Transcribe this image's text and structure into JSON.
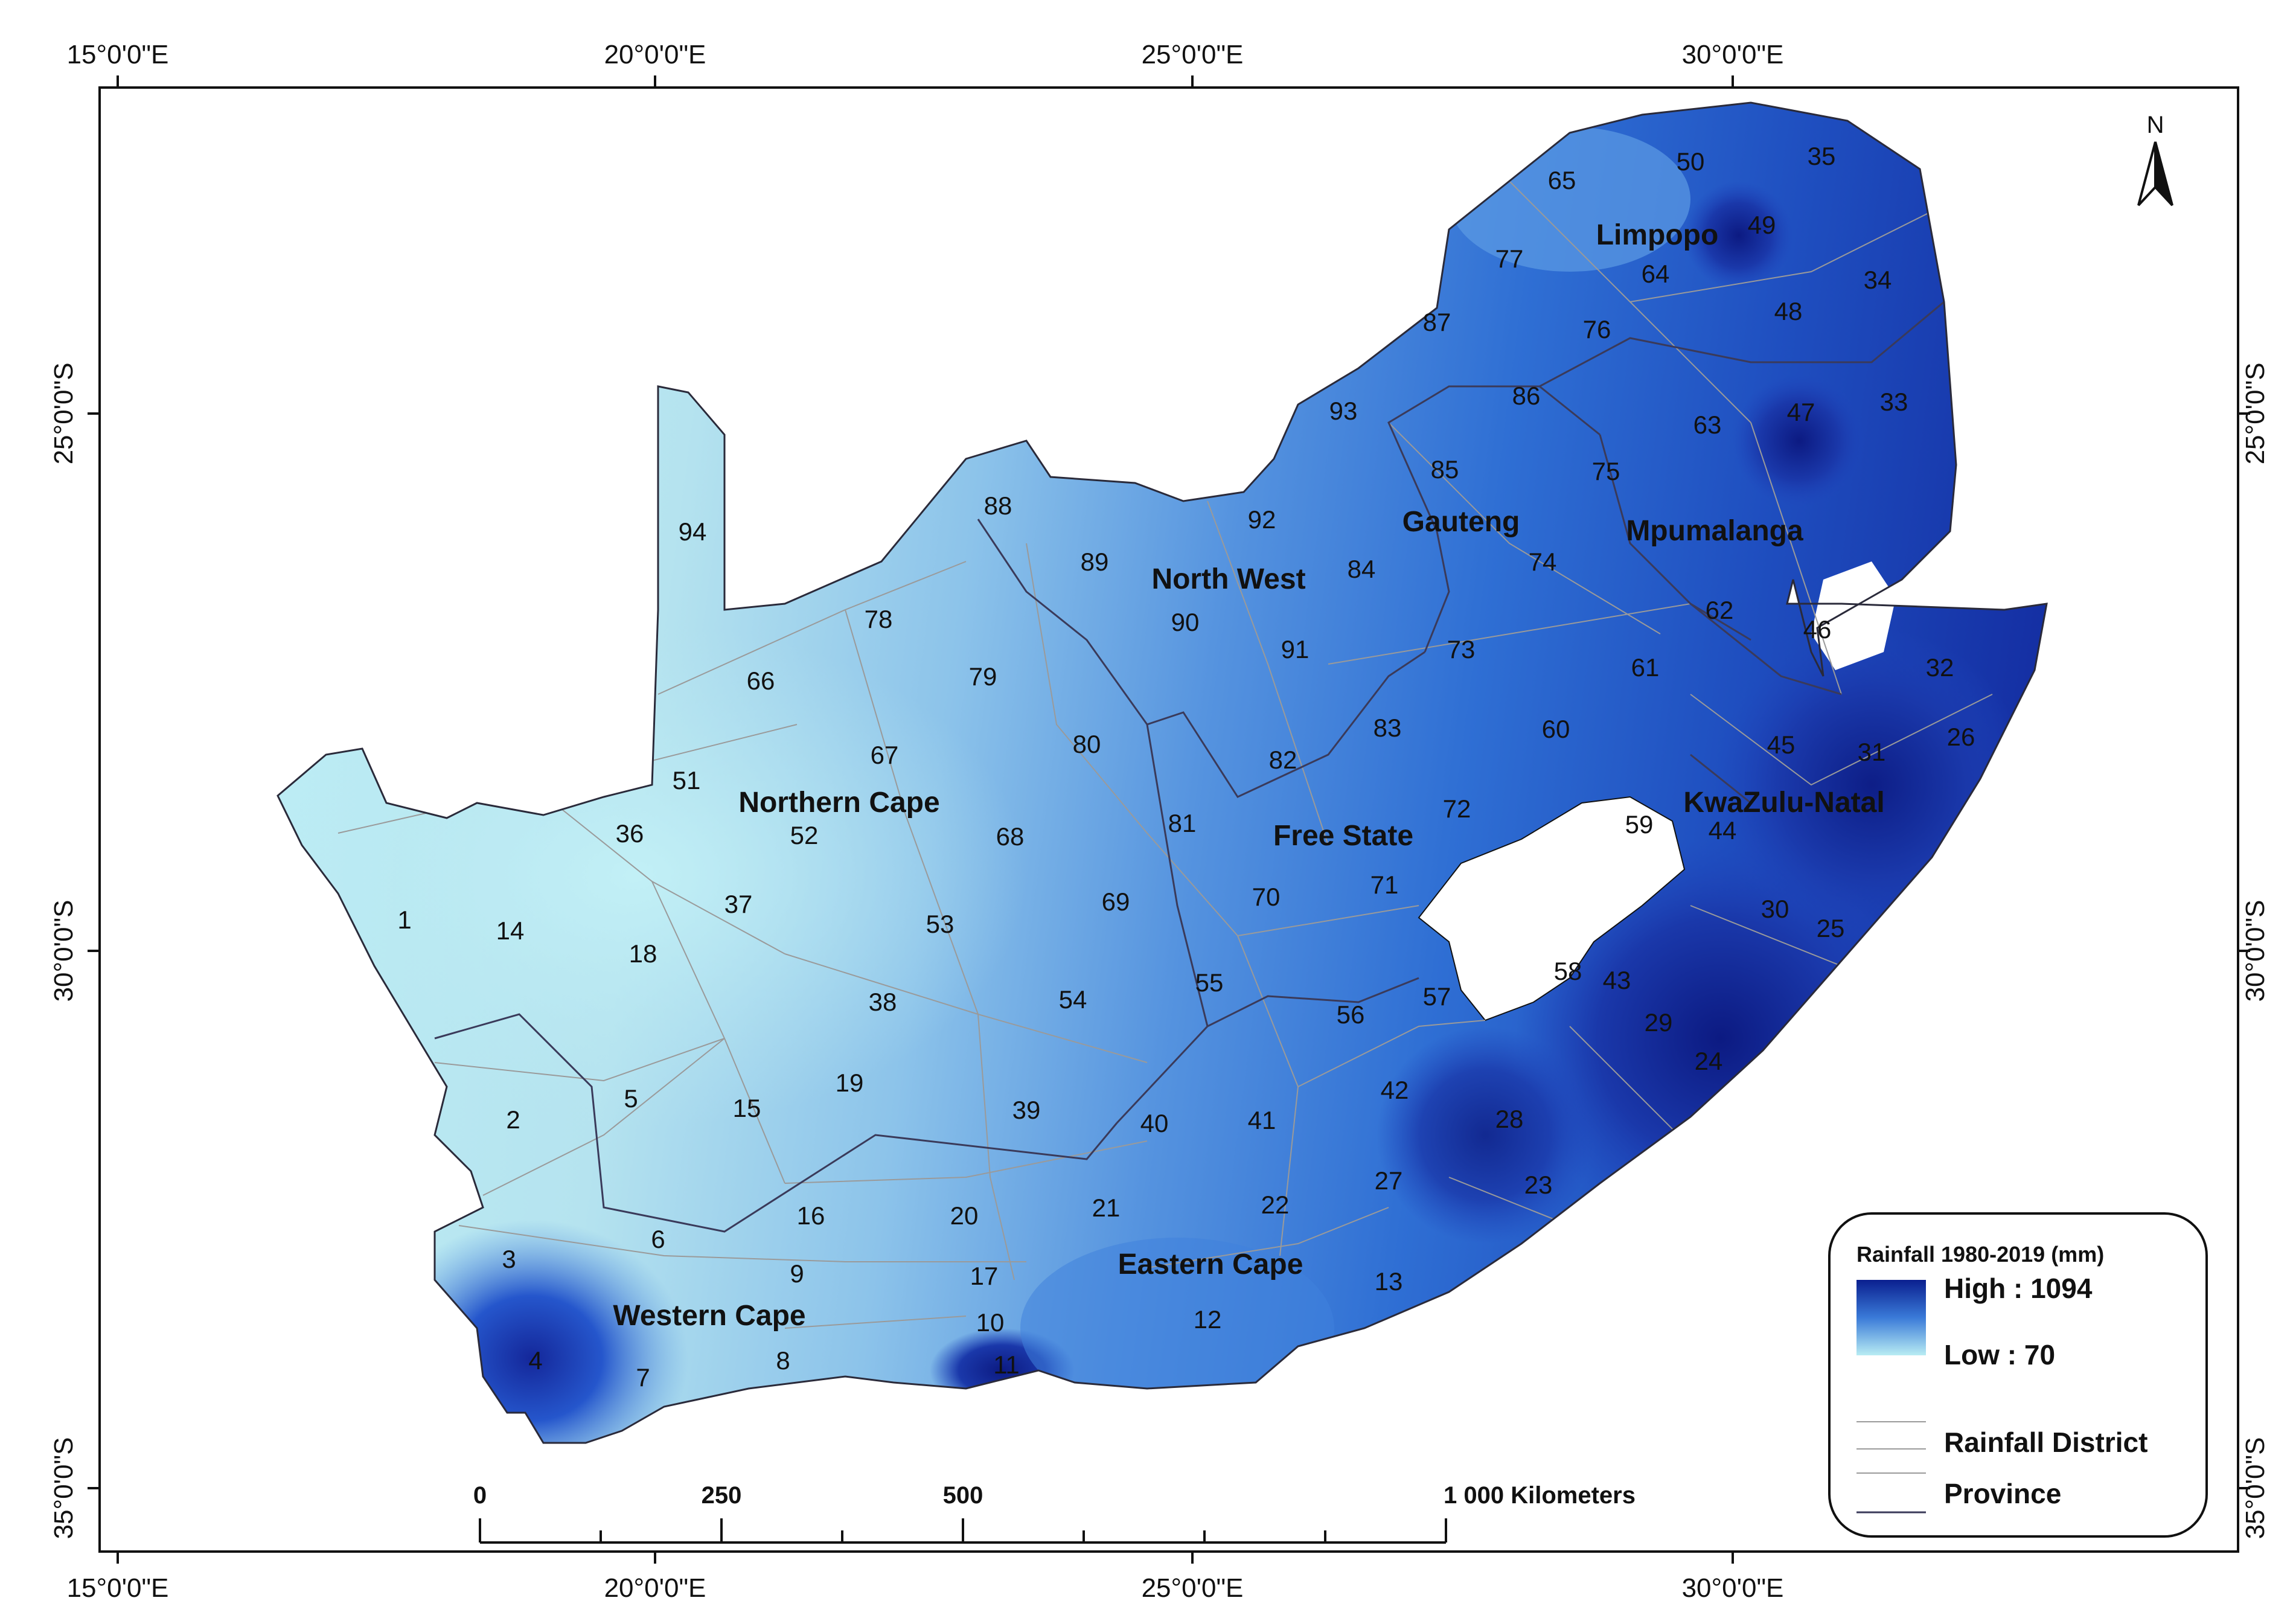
{
  "graticule": {
    "top_labels": [
      "15°0'0\"E",
      "20°0'0\"E",
      "25°0'0\"E",
      "30°0'0\"E"
    ],
    "bottom_labels": [
      "15°0'0\"E",
      "20°0'0\"E",
      "25°0'0\"E",
      "30°0'0\"E"
    ],
    "left_labels": [
      "25°0'0\"S",
      "30°0'0\"S",
      "35°0'0\"S"
    ],
    "right_labels": [
      "25°0'0\"S",
      "30°0'0\"S",
      "35°0'0\"S"
    ]
  },
  "north_arrow": {
    "label": "N"
  },
  "provinces": [
    "Limpopo",
    "Gauteng",
    "Mpumalanga",
    "North West",
    "Northern Cape",
    "Free State",
    "KwaZulu-Natal",
    "Eastern Cape",
    "Western Cape"
  ],
  "districts": [
    "1",
    "2",
    "3",
    "4",
    "5",
    "6",
    "7",
    "8",
    "9",
    "10",
    "11",
    "12",
    "13",
    "14",
    "15",
    "16",
    "17",
    "18",
    "19",
    "20",
    "21",
    "22",
    "23",
    "24",
    "25",
    "26",
    "27",
    "28",
    "29",
    "30",
    "31",
    "32",
    "33",
    "34",
    "35",
    "36",
    "37",
    "38",
    "39",
    "40",
    "41",
    "42",
    "43",
    "44",
    "45",
    "46",
    "47",
    "48",
    "49",
    "50",
    "51",
    "52",
    "53",
    "54",
    "55",
    "56",
    "57",
    "58",
    "59",
    "60",
    "61",
    "62",
    "63",
    "64",
    "65",
    "66",
    "67",
    "68",
    "69",
    "70",
    "71",
    "72",
    "73",
    "74",
    "75",
    "76",
    "77",
    "78",
    "79",
    "80",
    "81",
    "82",
    "83",
    "84",
    "85",
    "86",
    "87",
    "88",
    "89",
    "90",
    "91",
    "92",
    "93",
    "94"
  ],
  "legend": {
    "title": "Rainfall 1980-2019 (mm)",
    "high_label": "High : 1094",
    "low_label": "Low : 70",
    "district_label": "Rainfall District",
    "province_label": "Province",
    "colors": {
      "high": "#0a1f8f",
      "low": "#b8ecf3"
    }
  },
  "scale_bar": {
    "labels": [
      "0",
      "250",
      "500",
      "1 000 Kilometers"
    ]
  },
  "colors": {
    "lesotho": "#ffffff",
    "frame": "#111111"
  }
}
